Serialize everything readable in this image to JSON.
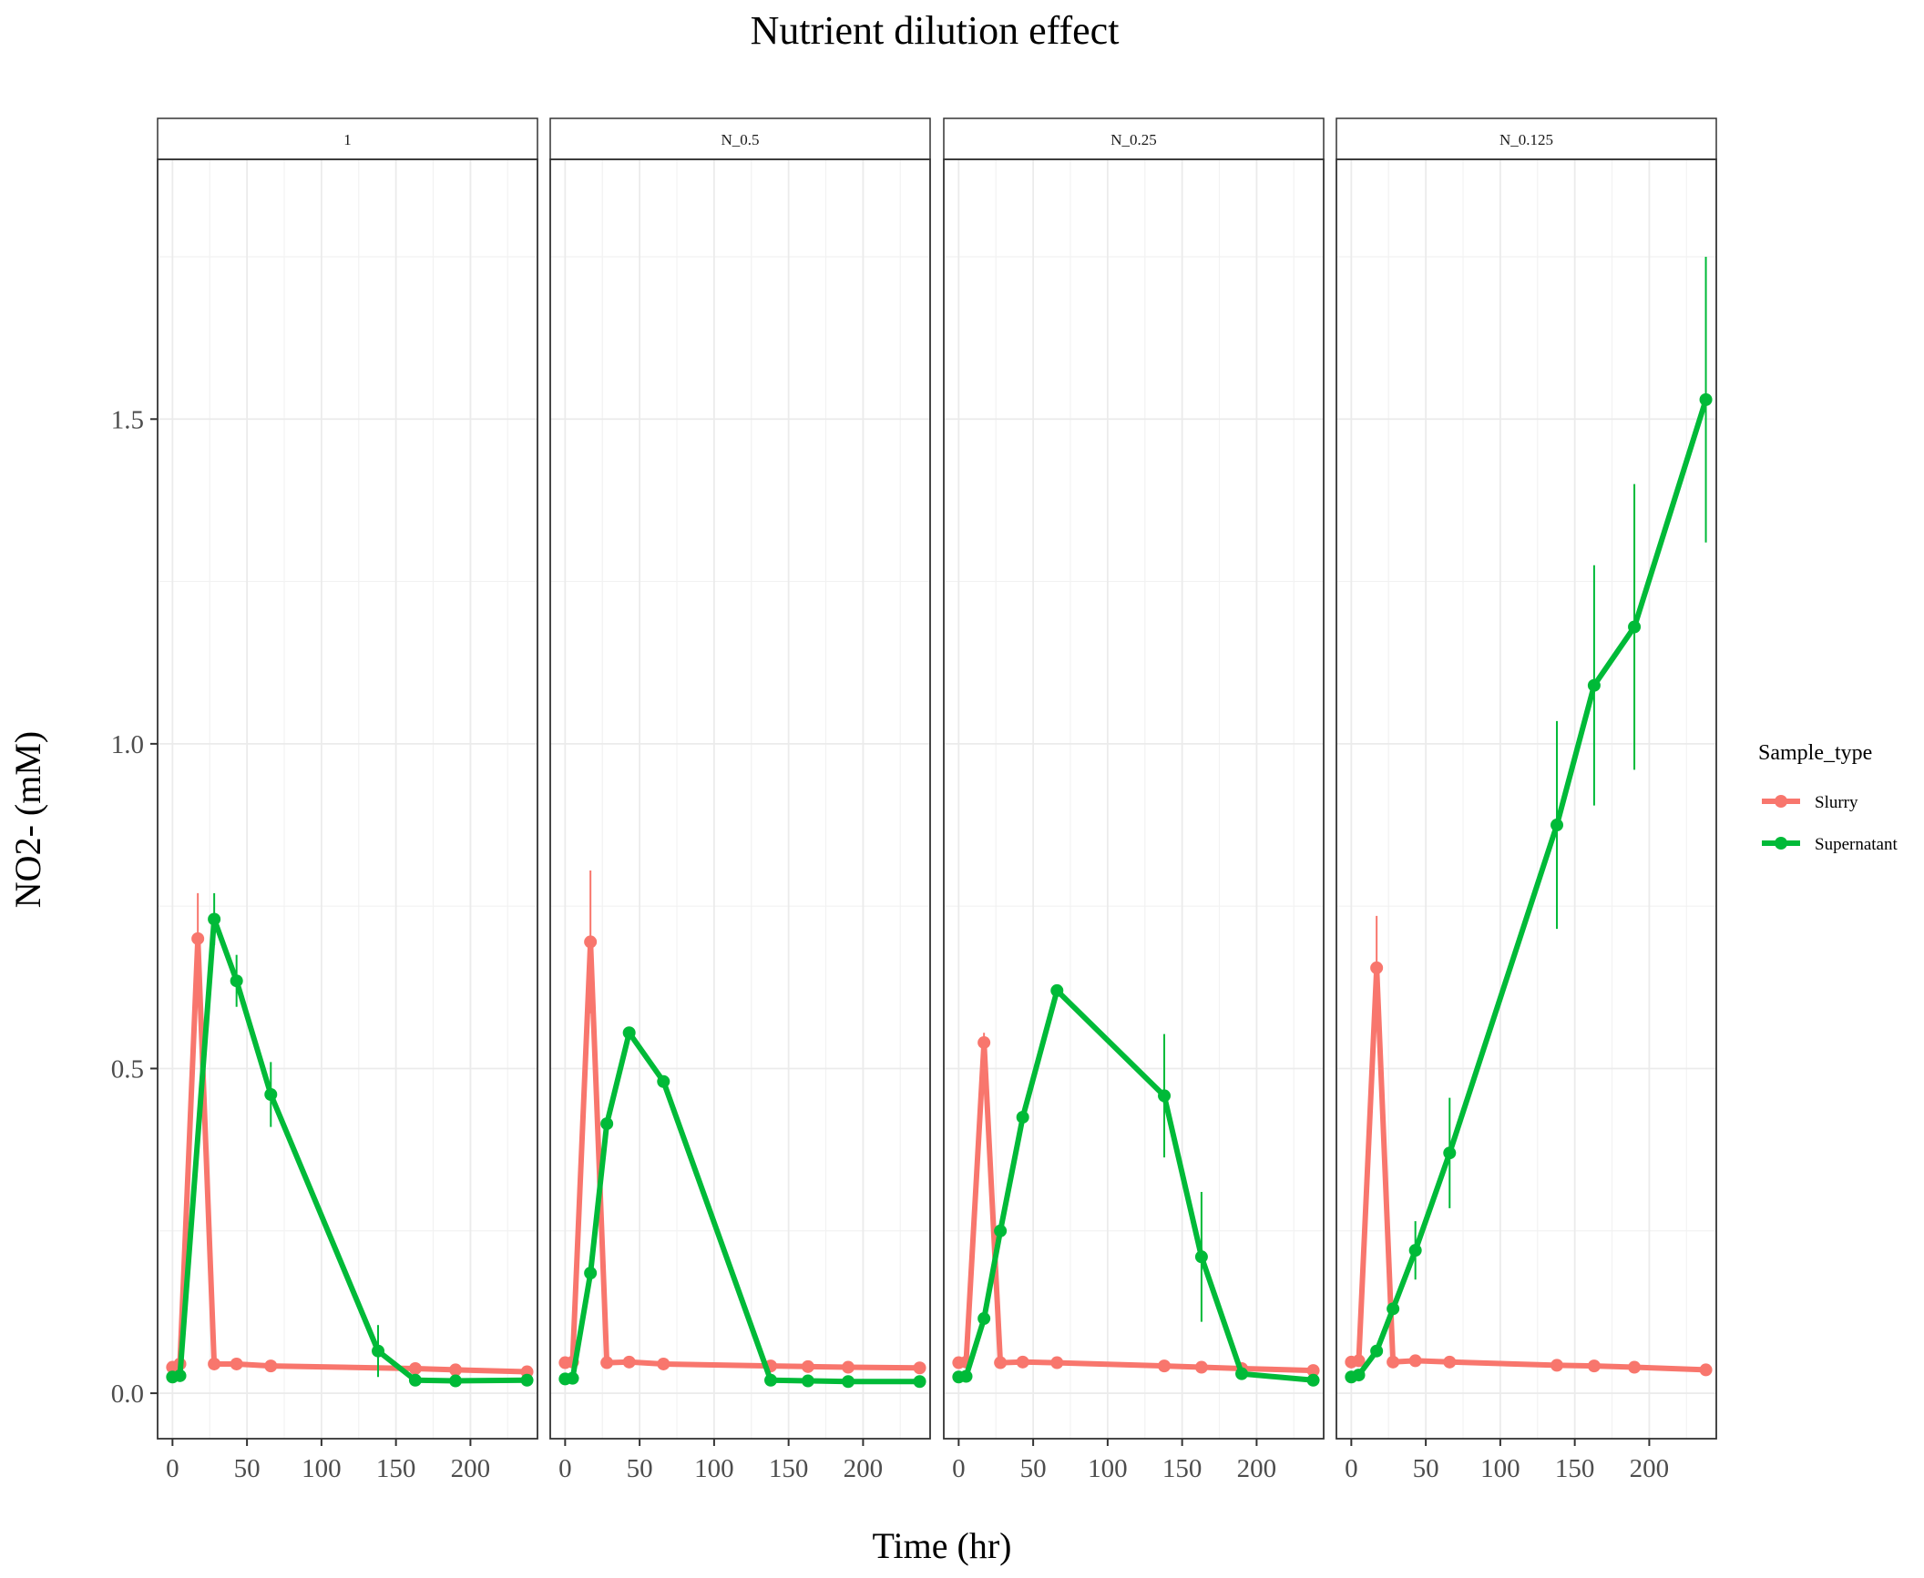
{
  "chart_data": {
    "type": "line",
    "title": "Nutrient dilution effect",
    "xlabel": "Time (hr)",
    "ylabel": "NO2- (mM)",
    "xlim": [
      -10,
      245
    ],
    "ylim": [
      -0.07,
      1.9
    ],
    "x_ticks": [
      0,
      50,
      100,
      150,
      200
    ],
    "y_ticks": [
      0.0,
      0.5,
      1.0,
      1.5
    ],
    "y_tick_labels": [
      "0.0",
      "0.5",
      "1.0",
      "1.5"
    ],
    "grid": true,
    "legend": {
      "title": "Sample_type",
      "position": "right",
      "entries": [
        {
          "name": "Slurry",
          "color": "#F8766D"
        },
        {
          "name": "Supernatant",
          "color": "#00BA38"
        }
      ]
    },
    "panels": [
      {
        "label": "1",
        "series": [
          {
            "name": "Slurry",
            "color": "#F8766D",
            "points": [
              {
                "x": 0,
                "y": 0.04,
                "err": 0
              },
              {
                "x": 5,
                "y": 0.045,
                "err": 0
              },
              {
                "x": 17,
                "y": 0.7,
                "err": 0.07
              },
              {
                "x": 28,
                "y": 0.045,
                "err": 0
              },
              {
                "x": 43,
                "y": 0.045,
                "err": 0
              },
              {
                "x": 66,
                "y": 0.042,
                "err": 0
              },
              {
                "x": 163,
                "y": 0.038,
                "err": 0
              },
              {
                "x": 190,
                "y": 0.036,
                "err": 0
              },
              {
                "x": 238,
                "y": 0.033,
                "err": 0
              }
            ]
          },
          {
            "name": "Supernatant",
            "color": "#00BA38",
            "points": [
              {
                "x": 0,
                "y": 0.025,
                "err": 0
              },
              {
                "x": 5,
                "y": 0.027,
                "err": 0
              },
              {
                "x": 28,
                "y": 0.73,
                "err": 0.04
              },
              {
                "x": 43,
                "y": 0.635,
                "err": 0.04
              },
              {
                "x": 66,
                "y": 0.46,
                "err": 0.05
              },
              {
                "x": 138,
                "y": 0.065,
                "err": 0.04
              },
              {
                "x": 163,
                "y": 0.02,
                "err": 0
              },
              {
                "x": 190,
                "y": 0.019,
                "err": 0
              },
              {
                "x": 238,
                "y": 0.02,
                "err": 0
              }
            ]
          }
        ]
      },
      {
        "label": "N_0.5",
        "series": [
          {
            "name": "Slurry",
            "color": "#F8766D",
            "points": [
              {
                "x": 0,
                "y": 0.047,
                "err": 0
              },
              {
                "x": 5,
                "y": 0.048,
                "err": 0
              },
              {
                "x": 17,
                "y": 0.695,
                "err": 0.11
              },
              {
                "x": 28,
                "y": 0.047,
                "err": 0
              },
              {
                "x": 43,
                "y": 0.048,
                "err": 0
              },
              {
                "x": 66,
                "y": 0.045,
                "err": 0
              },
              {
                "x": 138,
                "y": 0.042,
                "err": 0
              },
              {
                "x": 163,
                "y": 0.041,
                "err": 0
              },
              {
                "x": 190,
                "y": 0.04,
                "err": 0
              },
              {
                "x": 238,
                "y": 0.039,
                "err": 0
              }
            ]
          },
          {
            "name": "Supernatant",
            "color": "#00BA38",
            "points": [
              {
                "x": 0,
                "y": 0.022,
                "err": 0
              },
              {
                "x": 5,
                "y": 0.023,
                "err": 0
              },
              {
                "x": 17,
                "y": 0.185,
                "err": 0
              },
              {
                "x": 28,
                "y": 0.415,
                "err": 0
              },
              {
                "x": 43,
                "y": 0.555,
                "err": 0
              },
              {
                "x": 66,
                "y": 0.48,
                "err": 0
              },
              {
                "x": 138,
                "y": 0.02,
                "err": 0
              },
              {
                "x": 163,
                "y": 0.019,
                "err": 0
              },
              {
                "x": 190,
                "y": 0.018,
                "err": 0
              },
              {
                "x": 238,
                "y": 0.018,
                "err": 0
              }
            ]
          }
        ]
      },
      {
        "label": "N_0.25",
        "series": [
          {
            "name": "Slurry",
            "color": "#F8766D",
            "points": [
              {
                "x": 0,
                "y": 0.047,
                "err": 0
              },
              {
                "x": 5,
                "y": 0.048,
                "err": 0
              },
              {
                "x": 17,
                "y": 0.54,
                "err": 0.015
              },
              {
                "x": 28,
                "y": 0.047,
                "err": 0
              },
              {
                "x": 43,
                "y": 0.048,
                "err": 0
              },
              {
                "x": 66,
                "y": 0.047,
                "err": 0
              },
              {
                "x": 138,
                "y": 0.042,
                "err": 0
              },
              {
                "x": 163,
                "y": 0.04,
                "err": 0
              },
              {
                "x": 190,
                "y": 0.038,
                "err": 0
              },
              {
                "x": 238,
                "y": 0.035,
                "err": 0
              }
            ]
          },
          {
            "name": "Supernatant",
            "color": "#00BA38",
            "points": [
              {
                "x": 0,
                "y": 0.025,
                "err": 0
              },
              {
                "x": 5,
                "y": 0.026,
                "err": 0
              },
              {
                "x": 17,
                "y": 0.115,
                "err": 0
              },
              {
                "x": 28,
                "y": 0.25,
                "err": 0
              },
              {
                "x": 43,
                "y": 0.425,
                "err": 0
              },
              {
                "x": 66,
                "y": 0.62,
                "err": 0
              },
              {
                "x": 138,
                "y": 0.458,
                "err": 0.095
              },
              {
                "x": 163,
                "y": 0.21,
                "err": 0.1
              },
              {
                "x": 190,
                "y": 0.03,
                "err": 0
              },
              {
                "x": 238,
                "y": 0.02,
                "err": 0
              }
            ]
          }
        ]
      },
      {
        "label": "N_0.125",
        "series": [
          {
            "name": "Slurry",
            "color": "#F8766D",
            "points": [
              {
                "x": 0,
                "y": 0.048,
                "err": 0
              },
              {
                "x": 5,
                "y": 0.05,
                "err": 0
              },
              {
                "x": 17,
                "y": 0.655,
                "err": 0.08
              },
              {
                "x": 28,
                "y": 0.048,
                "err": 0
              },
              {
                "x": 43,
                "y": 0.05,
                "err": 0
              },
              {
                "x": 66,
                "y": 0.048,
                "err": 0
              },
              {
                "x": 138,
                "y": 0.043,
                "err": 0
              },
              {
                "x": 163,
                "y": 0.042,
                "err": 0
              },
              {
                "x": 190,
                "y": 0.04,
                "err": 0
              },
              {
                "x": 238,
                "y": 0.036,
                "err": 0
              }
            ]
          },
          {
            "name": "Supernatant",
            "color": "#00BA38",
            "points": [
              {
                "x": 0,
                "y": 0.025,
                "err": 0
              },
              {
                "x": 5,
                "y": 0.028,
                "err": 0
              },
              {
                "x": 17,
                "y": 0.065,
                "err": 0
              },
              {
                "x": 28,
                "y": 0.13,
                "err": 0
              },
              {
                "x": 43,
                "y": 0.22,
                "err": 0.045
              },
              {
                "x": 66,
                "y": 0.37,
                "err": 0.085
              },
              {
                "x": 138,
                "y": 0.875,
                "err": 0.16
              },
              {
                "x": 163,
                "y": 1.09,
                "err": 0.185
              },
              {
                "x": 190,
                "y": 1.18,
                "err": 0.22
              },
              {
                "x": 238,
                "y": 1.53,
                "err": 0.22
              }
            ]
          }
        ]
      }
    ]
  }
}
